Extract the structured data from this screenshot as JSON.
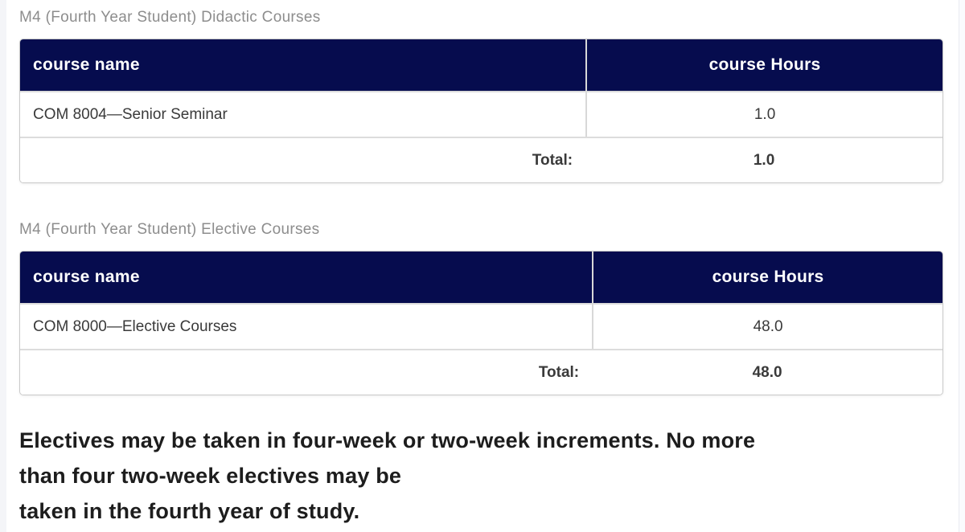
{
  "theme": {
    "header_navy": "#060c4e",
    "heading_gray": "#8d8d8d",
    "border_gray": "#d8d8d8",
    "cell_text": "#3a3a3a"
  },
  "sections": [
    {
      "heading": "M4 (Fourth Year Student) Didactic Courses",
      "table": {
        "columns": [
          "course name",
          "course Hours"
        ],
        "rows": [
          {
            "name": "COM 8004—Senior Seminar",
            "hours": "1.0"
          }
        ],
        "total_label": "Total:",
        "total_value": "1.0"
      }
    },
    {
      "heading": "M4 (Fourth Year Student) Elective Courses",
      "table": {
        "columns": [
          "course name",
          "course Hours"
        ],
        "rows": [
          {
            "name": "COM 8000—Elective Courses",
            "hours": "48.0"
          }
        ],
        "total_label": "Total:",
        "total_value": "48.0"
      }
    }
  ],
  "note": {
    "lines": [
      "Electives may be taken in four-week or two-week increments. No more",
      "than four two-week electives may be",
      "taken in the fourth year of study."
    ]
  }
}
